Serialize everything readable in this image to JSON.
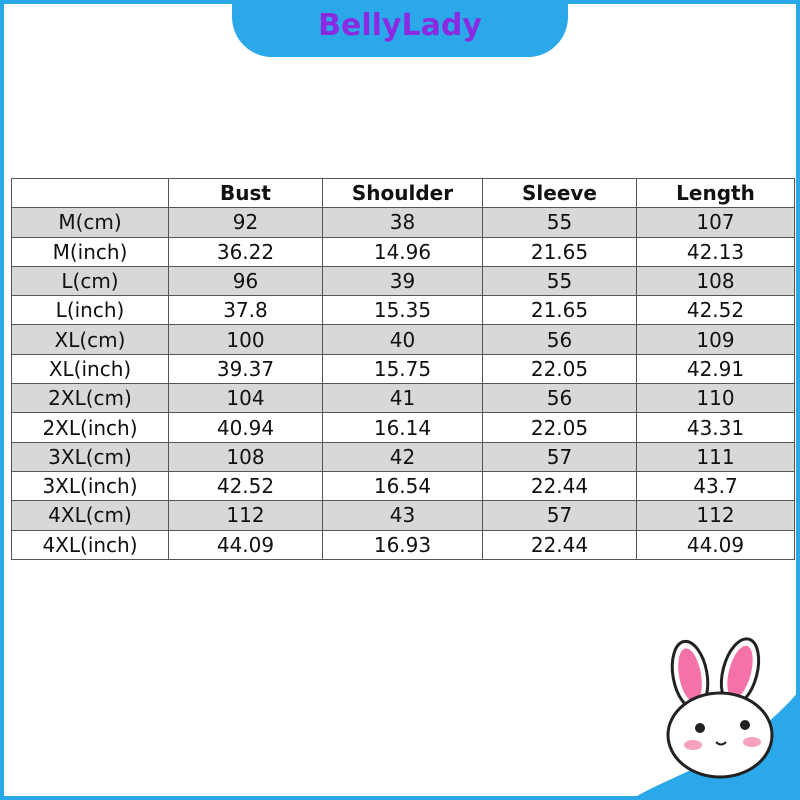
{
  "header": {
    "title": "BellyLady"
  },
  "table": {
    "columns": [
      "Bust",
      "Shoulder",
      "Sleeve",
      "Length"
    ],
    "rows": [
      [
        "M(cm)",
        "92",
        "38",
        "55",
        "107"
      ],
      [
        "M(inch)",
        "36.22",
        "14.96",
        "21.65",
        "42.13"
      ],
      [
        "L(cm)",
        "96",
        "39",
        "55",
        "108"
      ],
      [
        "L(inch)",
        "37.8",
        "15.35",
        "21.65",
        "42.52"
      ],
      [
        "XL(cm)",
        "100",
        "40",
        "56",
        "109"
      ],
      [
        "XL(inch)",
        "39.37",
        "15.75",
        "22.05",
        "42.91"
      ],
      [
        "2XL(cm)",
        "104",
        "41",
        "56",
        "110"
      ],
      [
        "2XL(inch)",
        "40.94",
        "16.14",
        "22.05",
        "43.31"
      ],
      [
        "3XL(cm)",
        "108",
        "42",
        "57",
        "111"
      ],
      [
        "3XL(inch)",
        "42.52",
        "16.54",
        "22.44",
        "43.7"
      ],
      [
        "4XL(cm)",
        "112",
        "43",
        "57",
        "112"
      ],
      [
        "4XL(inch)",
        "44.09",
        "16.93",
        "22.44",
        "44.09"
      ]
    ]
  }
}
